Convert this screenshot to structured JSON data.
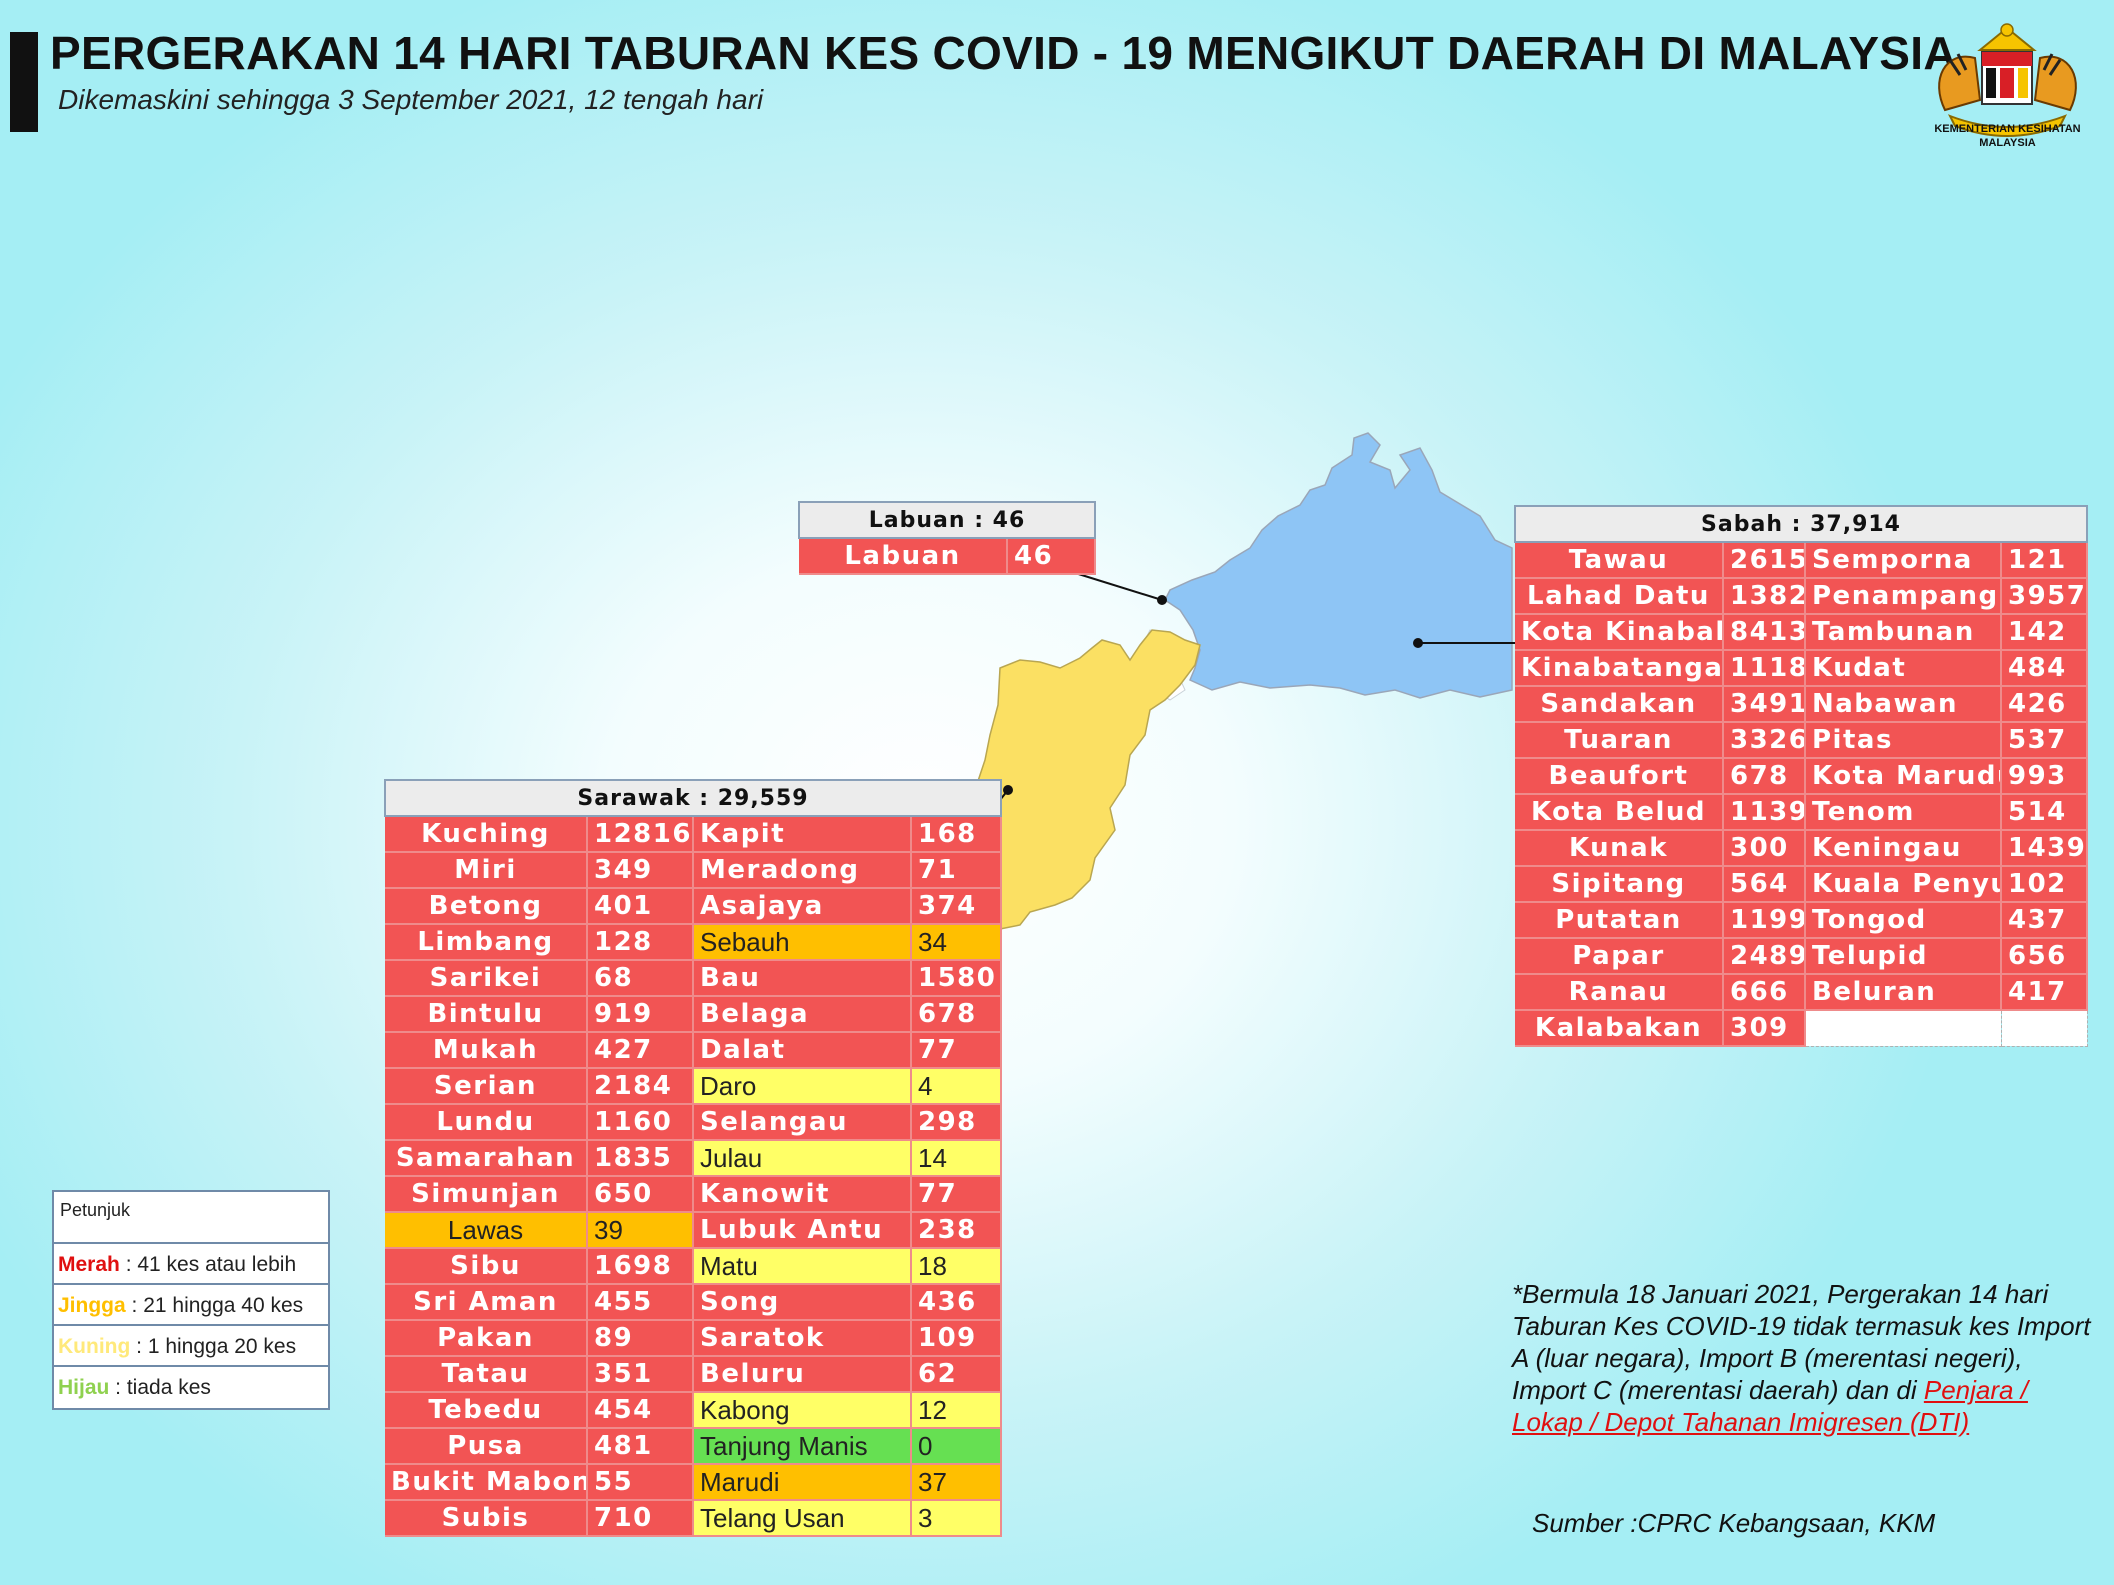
{
  "header": {
    "title": "PERGERAKAN 14 HARI TABURAN KES COVID - 19 MENGIKUT DAERAH DI MALAYSIA",
    "subtitle": "Dikemaskini sehingga 3 September 2021, 12 tengah hari",
    "logo_line1": "KEMENTERIAN KESIHATAN",
    "logo_line2": "MALAYSIA"
  },
  "colors": {
    "merah": "#f25454",
    "jingga": "#ffbf00",
    "kuning": "#ffff66",
    "hijau": "#66e052",
    "sabah_map": "#8ec5f5",
    "sarawak_map": "#fbe063"
  },
  "labuan": {
    "header": "Labuan : 46",
    "rows": [
      {
        "name": "Labuan",
        "value": "46",
        "level": "red"
      }
    ]
  },
  "sabah": {
    "header": "Sabah : 37,914",
    "rows": [
      [
        {
          "name": "Tawau",
          "value": "2615",
          "level": "red"
        },
        {
          "name": "Semporna",
          "value": "121",
          "level": "red"
        }
      ],
      [
        {
          "name": "Lahad Datu",
          "value": "1382",
          "level": "red"
        },
        {
          "name": "Penampang",
          "value": "3957",
          "level": "red"
        }
      ],
      [
        {
          "name": "Kota Kinabalu",
          "value": "8413",
          "level": "red"
        },
        {
          "name": "Tambunan",
          "value": "142",
          "level": "red"
        }
      ],
      [
        {
          "name": "Kinabatangan",
          "value": "1118",
          "level": "red"
        },
        {
          "name": "Kudat",
          "value": "484",
          "level": "red"
        }
      ],
      [
        {
          "name": "Sandakan",
          "value": "3491",
          "level": "red"
        },
        {
          "name": "Nabawan",
          "value": "426",
          "level": "red"
        }
      ],
      [
        {
          "name": "Tuaran",
          "value": "3326",
          "level": "red"
        },
        {
          "name": "Pitas",
          "value": "537",
          "level": "red"
        }
      ],
      [
        {
          "name": "Beaufort",
          "value": "678",
          "level": "red"
        },
        {
          "name": "Kota Marudu",
          "value": "993",
          "level": "red"
        }
      ],
      [
        {
          "name": "Kota Belud",
          "value": "1139",
          "level": "red"
        },
        {
          "name": "Tenom",
          "value": "514",
          "level": "red"
        }
      ],
      [
        {
          "name": "Kunak",
          "value": "300",
          "level": "red"
        },
        {
          "name": "Keningau",
          "value": "1439",
          "level": "red"
        }
      ],
      [
        {
          "name": "Sipitang",
          "value": "564",
          "level": "red"
        },
        {
          "name": "Kuala Penyu",
          "value": "102",
          "level": "red"
        }
      ],
      [
        {
          "name": "Putatan",
          "value": "1199",
          "level": "red"
        },
        {
          "name": "Tongod",
          "value": "437",
          "level": "red"
        }
      ],
      [
        {
          "name": "Papar",
          "value": "2489",
          "level": "red"
        },
        {
          "name": "Telupid",
          "value": "656",
          "level": "red"
        }
      ],
      [
        {
          "name": "Ranau",
          "value": "666",
          "level": "red"
        },
        {
          "name": "Beluran",
          "value": "417",
          "level": "red"
        }
      ],
      [
        {
          "name": "Kalabakan",
          "value": "309",
          "level": "red"
        },
        null
      ]
    ]
  },
  "sarawak": {
    "header": "Sarawak : 29,559",
    "rows": [
      [
        {
          "name": "Kuching",
          "value": "12816",
          "level": "red"
        },
        {
          "name": "Kapit",
          "value": "168",
          "level": "red"
        }
      ],
      [
        {
          "name": "Miri",
          "value": "349",
          "level": "red"
        },
        {
          "name": "Meradong",
          "value": "71",
          "level": "red"
        }
      ],
      [
        {
          "name": "Betong",
          "value": "401",
          "level": "red"
        },
        {
          "name": "Asajaya",
          "value": "374",
          "level": "red"
        }
      ],
      [
        {
          "name": "Limbang",
          "value": "128",
          "level": "red"
        },
        {
          "name": "Sebauh",
          "value": "34",
          "level": "org"
        }
      ],
      [
        {
          "name": "Sarikei",
          "value": "68",
          "level": "red"
        },
        {
          "name": "Bau",
          "value": "1580",
          "level": "red"
        }
      ],
      [
        {
          "name": "Bintulu",
          "value": "919",
          "level": "red"
        },
        {
          "name": "Belaga",
          "value": "678",
          "level": "red"
        }
      ],
      [
        {
          "name": "Mukah",
          "value": "427",
          "level": "red"
        },
        {
          "name": "Dalat",
          "value": "77",
          "level": "red"
        }
      ],
      [
        {
          "name": "Serian",
          "value": "2184",
          "level": "red"
        },
        {
          "name": "Daro",
          "value": "4",
          "level": "yel"
        }
      ],
      [
        {
          "name": "Lundu",
          "value": "1160",
          "level": "red"
        },
        {
          "name": "Selangau",
          "value": "298",
          "level": "red"
        }
      ],
      [
        {
          "name": "Samarahan",
          "value": "1835",
          "level": "red"
        },
        {
          "name": "Julau",
          "value": "14",
          "level": "yel"
        }
      ],
      [
        {
          "name": "Simunjan",
          "value": "650",
          "level": "red"
        },
        {
          "name": "Kanowit",
          "value": "77",
          "level": "red"
        }
      ],
      [
        {
          "name": "Lawas",
          "value": "39",
          "level": "org"
        },
        {
          "name": "Lubuk Antu",
          "value": "238",
          "level": "red"
        }
      ],
      [
        {
          "name": "Sibu",
          "value": "1698",
          "level": "red"
        },
        {
          "name": "Matu",
          "value": "18",
          "level": "yel"
        }
      ],
      [
        {
          "name": "Sri Aman",
          "value": "455",
          "level": "red"
        },
        {
          "name": "Song",
          "value": "436",
          "level": "red"
        }
      ],
      [
        {
          "name": "Pakan",
          "value": "89",
          "level": "red"
        },
        {
          "name": "Saratok",
          "value": "109",
          "level": "red"
        }
      ],
      [
        {
          "name": "Tatau",
          "value": "351",
          "level": "red"
        },
        {
          "name": "Beluru",
          "value": "62",
          "level": "red"
        }
      ],
      [
        {
          "name": "Tebedu",
          "value": "454",
          "level": "red"
        },
        {
          "name": "Kabong",
          "value": "12",
          "level": "yel"
        }
      ],
      [
        {
          "name": "Pusa",
          "value": "481",
          "level": "red"
        },
        {
          "name": "Tanjung Manis",
          "value": "0",
          "level": "grn"
        }
      ],
      [
        {
          "name": "Bukit Mabong",
          "value": "55",
          "level": "red"
        },
        {
          "name": "Marudi",
          "value": "37",
          "level": "org"
        }
      ],
      [
        {
          "name": "Subis",
          "value": "710",
          "level": "red"
        },
        {
          "name": "Telang Usan",
          "value": "3",
          "level": "yel"
        }
      ]
    ]
  },
  "legend": {
    "title": "Petunjuk",
    "items": [
      {
        "label": "Merah",
        "text": " : 41 kes atau lebih",
        "color": "#e01010"
      },
      {
        "label": "Jingga",
        "text": " : 21 hingga 40 kes",
        "color": "#ffbf00"
      },
      {
        "label": "Kuning",
        "text": " : 1 hingga 20 kes",
        "color": "#ffe97a"
      },
      {
        "label": "Hijau",
        "text": " : tiada kes",
        "color": "#8fd14f"
      }
    ]
  },
  "note": {
    "text": "*Bermula 18 Januari 2021, Pergerakan 14 hari Taburan Kes COVID-19 tidak termasuk kes Import A (luar negara), Import B (merentasi negeri), Import C (merentasi daerah) dan di ",
    "link_text": "Penjara / Lokap / Depot Tahanan Imigresen (DTI)"
  },
  "source": "Sumber :CPRC Kebangsaan,  KKM"
}
